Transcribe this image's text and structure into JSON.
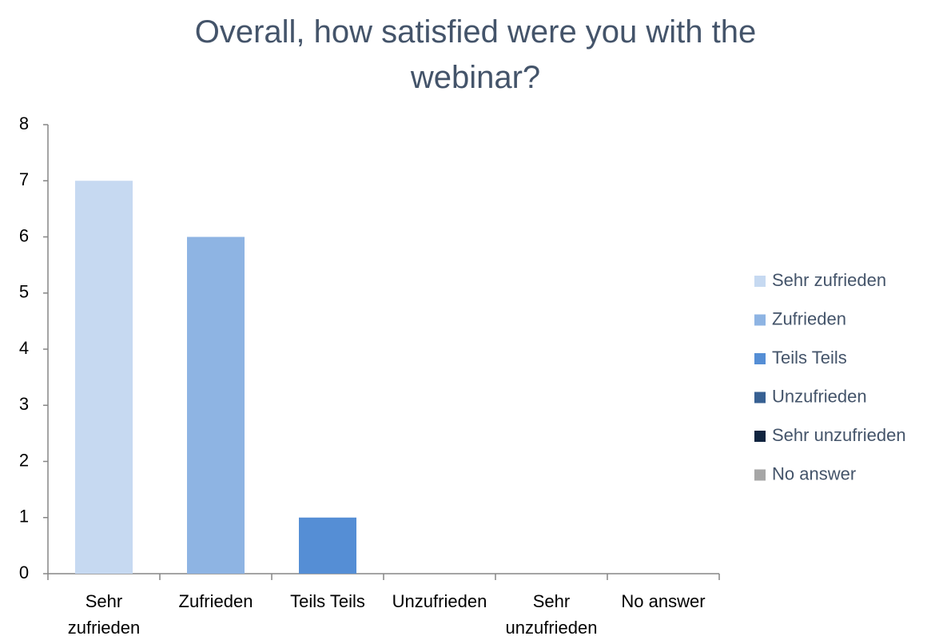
{
  "chart_data": {
    "type": "bar",
    "title": "Overall, how satisfied were you with the webinar?",
    "categories": [
      "Sehr zufrieden",
      "Zufrieden",
      "Teils Teils",
      "Unzufrieden",
      "Sehr unzufrieden",
      "No answer"
    ],
    "values": [
      7,
      6,
      1,
      0,
      0,
      0
    ],
    "colors": [
      "#c6d9f1",
      "#8eb4e3",
      "#558ed5",
      "#376092",
      "#10243f",
      "#a6a6a6"
    ],
    "ylim": [
      0,
      8
    ],
    "yticks": [
      0,
      1,
      2,
      3,
      4,
      5,
      6,
      7,
      8
    ],
    "grid": false,
    "legend": "right"
  }
}
